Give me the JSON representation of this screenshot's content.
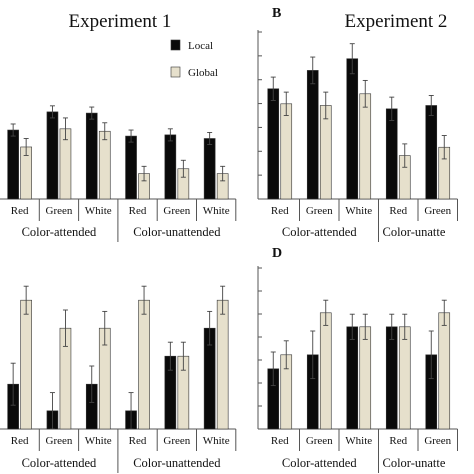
{
  "panel_titles": {
    "A": "Experiment 1",
    "B": "Experiment 2"
  },
  "panel_letters": {
    "B": "B",
    "D": "D"
  },
  "legend": {
    "local": "Local",
    "global": "Global"
  },
  "colors": {
    "local": "#0a0a0a",
    "global": "#e6e0cc",
    "axis": "#555555",
    "error": "#444444"
  },
  "chart_data": [
    {
      "panel": "A",
      "type": "bar",
      "title": "Experiment 1",
      "categories": [
        "Red",
        "Green",
        "White",
        "Red",
        "Green",
        "White"
      ],
      "groups": [
        "Color-attended",
        "Color-unattended"
      ],
      "series": [
        {
          "name": "Local",
          "values": [
            0.57,
            0.72,
            0.71,
            0.52,
            0.53,
            0.5
          ],
          "errors": [
            0.05,
            0.05,
            0.05,
            0.05,
            0.05,
            0.05
          ]
        },
        {
          "name": "Global",
          "values": [
            0.43,
            0.58,
            0.56,
            0.21,
            0.25,
            0.21
          ],
          "errors": [
            0.07,
            0.09,
            0.07,
            0.06,
            0.07,
            0.06
          ]
        }
      ],
      "ylim": [
        0,
        1
      ]
    },
    {
      "panel": "B",
      "type": "bar",
      "title": "Experiment 2",
      "categories": [
        "Red",
        "Green",
        "White",
        "Red",
        "Green"
      ],
      "groups": [
        "Color-attended",
        "Color-unatte"
      ],
      "series": [
        {
          "name": "Local",
          "values": [
            0.66,
            0.77,
            0.84,
            0.54,
            0.56
          ],
          "errors": [
            0.07,
            0.08,
            0.09,
            0.07,
            0.06
          ]
        },
        {
          "name": "Global",
          "values": [
            0.57,
            0.56,
            0.63,
            0.26,
            0.31
          ],
          "errors": [
            0.07,
            0.08,
            0.08,
            0.07,
            0.07
          ]
        }
      ],
      "ylim": [
        0,
        1
      ]
    },
    {
      "panel": "C",
      "type": "bar",
      "categories": [
        "Red",
        "Green",
        "White",
        "Red",
        "Green",
        "White"
      ],
      "groups": [
        "Color-attended",
        "Color-unattended"
      ],
      "series": [
        {
          "name": "Local",
          "values": [
            0.32,
            0.13,
            0.32,
            0.13,
            0.52,
            0.72
          ],
          "errors": [
            0.15,
            0.13,
            0.13,
            0.13,
            0.1,
            0.12
          ]
        },
        {
          "name": "Global",
          "values": [
            0.92,
            0.72,
            0.72,
            0.92,
            0.52,
            0.92
          ],
          "errors": [
            0.1,
            0.13,
            0.12,
            0.1,
            0.1,
            0.1
          ]
        }
      ],
      "ylim": [
        0,
        1.15
      ]
    },
    {
      "panel": "D",
      "type": "bar",
      "categories": [
        "Red",
        "Green",
        "White",
        "Red",
        "Green"
      ],
      "groups": [
        "Color-attended",
        "Color-unatte"
      ],
      "series": [
        {
          "name": "Local",
          "values": [
            0.43,
            0.53,
            0.73,
            0.73,
            0.53
          ],
          "errors": [
            0.12,
            0.17,
            0.09,
            0.09,
            0.17
          ]
        },
        {
          "name": "Global",
          "values": [
            0.53,
            0.83,
            0.73,
            0.73,
            0.83
          ],
          "errors": [
            0.1,
            0.09,
            0.09,
            0.09,
            0.09
          ]
        }
      ],
      "ylim": [
        0,
        1.15
      ]
    }
  ]
}
